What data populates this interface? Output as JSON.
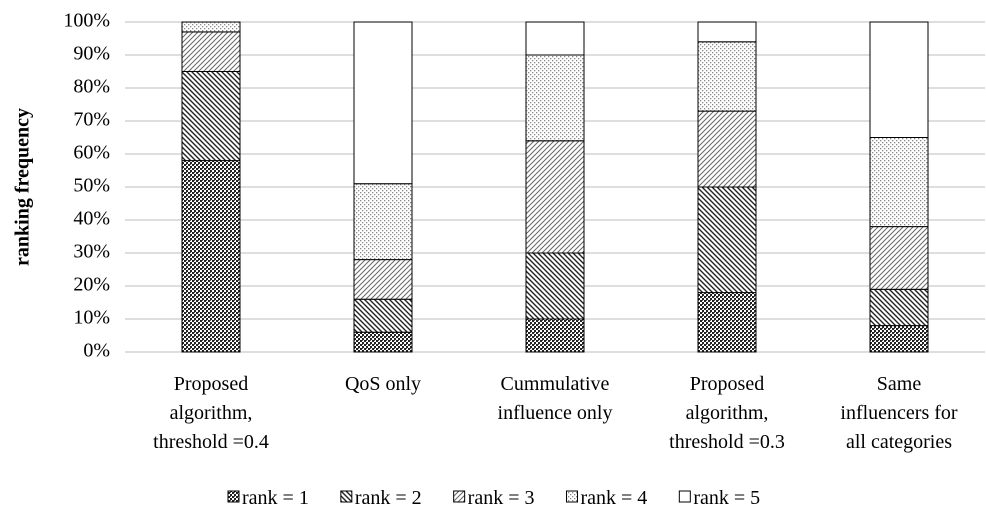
{
  "chart_data": {
    "type": "stacked_bar",
    "y_label": "ranking frequency",
    "categories": [
      "Proposed\nalgorithm,\nthreshold =0.4",
      "QoS only",
      "Cummulative\ninfluence only",
      "Proposed\nalgorithm,\nthreshold =0.3",
      "Same\ninfluencers for\nall categories"
    ],
    "series": [
      {
        "name": "rank = 1",
        "values": [
          58,
          6,
          10,
          18,
          8
        ]
      },
      {
        "name": "rank = 2",
        "values": [
          27,
          10,
          20,
          32,
          11
        ]
      },
      {
        "name": "rank = 3",
        "values": [
          12,
          12,
          34,
          23,
          19
        ]
      },
      {
        "name": "rank = 4",
        "values": [
          3,
          23,
          26,
          21,
          27
        ]
      },
      {
        "name": "rank = 5",
        "values": [
          0,
          49,
          10,
          6,
          35
        ]
      }
    ],
    "ylim": [
      0,
      100
    ],
    "yticks": [
      {
        "value": 0,
        "label": "0%"
      },
      {
        "value": 10,
        "label": "10%"
      },
      {
        "value": 20,
        "label": "20%"
      },
      {
        "value": 30,
        "label": "30%"
      },
      {
        "value": 40,
        "label": "40%"
      },
      {
        "value": 50,
        "label": "50%"
      },
      {
        "value": 60,
        "label": "60%"
      },
      {
        "value": 70,
        "label": "70%"
      },
      {
        "value": 80,
        "label": "80%"
      },
      {
        "value": 90,
        "label": "90%"
      },
      {
        "value": 100,
        "label": "100%"
      }
    ],
    "grid": true,
    "legend": "bottom"
  }
}
